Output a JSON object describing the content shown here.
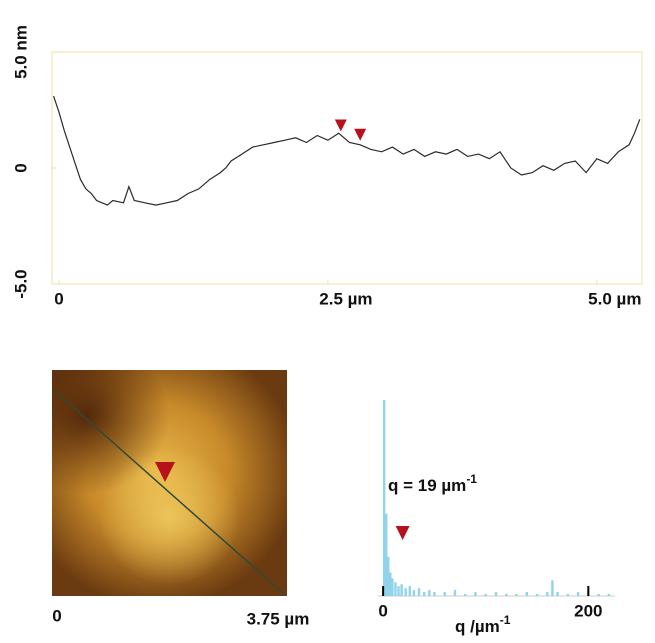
{
  "chart_data": [
    {
      "type": "line",
      "color": "#2a2a2a",
      "frame_color": "#f1e2a6",
      "xlim": [
        -0.065,
        5.42
      ],
      "ylim": [
        -5,
        5
      ],
      "xticks": [
        0,
        {
          "value": 2.5,
          "label": "2.5 µm"
        },
        {
          "value": 5.0,
          "label": "5.0 µm"
        }
      ],
      "yticks": [
        {
          "value": -5.0,
          "label": "-5.0"
        },
        0,
        {
          "value": 5.0,
          "label": "5.0 nm"
        }
      ],
      "x": [
        -0.05,
        0.0,
        0.05,
        0.1,
        0.15,
        0.2,
        0.25,
        0.3,
        0.35,
        0.4,
        0.45,
        0.5,
        0.6,
        0.65,
        0.7,
        0.8,
        0.9,
        1.0,
        1.1,
        1.2,
        1.3,
        1.4,
        1.5,
        1.55,
        1.6,
        1.7,
        1.8,
        1.9,
        2.0,
        2.1,
        2.2,
        2.3,
        2.4,
        2.5,
        2.6,
        2.7,
        2.8,
        2.9,
        3.0,
        3.1,
        3.2,
        3.3,
        3.4,
        3.5,
        3.6,
        3.7,
        3.8,
        3.9,
        4.0,
        4.1,
        4.2,
        4.3,
        4.4,
        4.5,
        4.6,
        4.7,
        4.8,
        4.9,
        5.0,
        5.1,
        5.2,
        5.3,
        5.35,
        5.4
      ],
      "values": [
        3.1,
        2.4,
        1.6,
        0.9,
        0.2,
        -0.5,
        -0.9,
        -1.1,
        -1.4,
        -1.5,
        -1.6,
        -1.4,
        -1.5,
        -0.8,
        -1.4,
        -1.5,
        -1.6,
        -1.5,
        -1.4,
        -1.1,
        -0.9,
        -0.5,
        -0.2,
        0.0,
        0.3,
        0.6,
        0.9,
        1.0,
        1.1,
        1.2,
        1.3,
        1.1,
        1.4,
        1.2,
        1.5,
        1.1,
        1.0,
        0.8,
        0.7,
        0.9,
        0.6,
        0.8,
        0.5,
        0.7,
        0.6,
        0.8,
        0.5,
        0.6,
        0.4,
        0.7,
        0.0,
        -0.3,
        -0.2,
        0.1,
        -0.1,
        0.2,
        0.3,
        -0.2,
        0.4,
        0.2,
        0.7,
        1.0,
        1.5,
        2.1
      ],
      "markers": {
        "color": "#b5121b",
        "x": [
          2.62,
          2.8
        ],
        "y": [
          1.4,
          1.0
        ]
      }
    },
    {
      "type": "bar",
      "color": "#8fd3ec",
      "marker_color": "#b5121b",
      "xlim": [
        -5,
        226
      ],
      "ylim": [
        0,
        100
      ],
      "xticks": [
        0,
        200
      ],
      "x": [
        1,
        3,
        5,
        7,
        9,
        12,
        15,
        18,
        22,
        26,
        30,
        35,
        40,
        45,
        50,
        60,
        70,
        80,
        90,
        100,
        110,
        120,
        130,
        140,
        150,
        160,
        165,
        170,
        180,
        190,
        200,
        210,
        220
      ],
      "values": [
        100,
        42,
        20,
        12,
        9,
        7,
        5,
        6,
        4,
        5,
        3,
        4,
        2,
        3,
        2,
        2,
        3,
        1,
        2,
        1,
        2,
        1,
        1,
        2,
        1,
        2,
        8,
        2,
        1,
        2,
        1,
        1,
        1
      ],
      "marker_x": 19,
      "annotation": {
        "text": "q = 19 µm",
        "superscript": "-1"
      },
      "xlabel": {
        "text": "q /µm",
        "superscript": "-1"
      }
    }
  ],
  "afm_image": {
    "x_start_label": "0",
    "x_end_label": "3.75 µm"
  }
}
